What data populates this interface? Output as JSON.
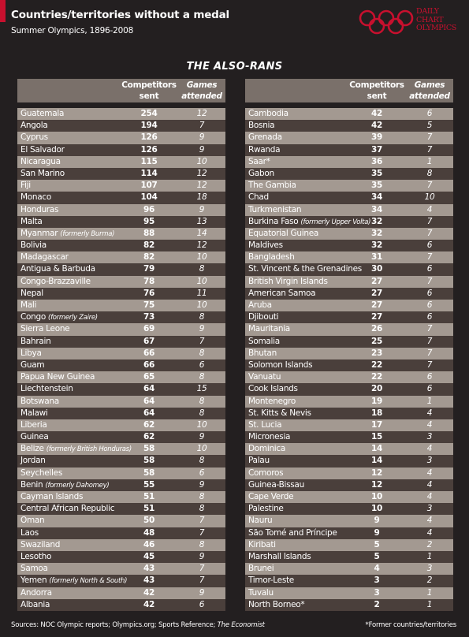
{
  "header": {
    "title": "Countries/territories without a medal",
    "subtitle": "Summer Olympics, 1896-2008",
    "brand_line1": "DAILY",
    "brand_line2": "CHART",
    "brand_line3": "OLYMPICS",
    "brand_color": "#c8102e"
  },
  "table_heading": "THE ALSO-RANS",
  "columns": {
    "competitors": [
      "Competitors",
      "sent"
    ],
    "games": [
      "Games",
      "attended"
    ]
  },
  "footer": {
    "sources_prefix": "Sources: NOC Olympic reports; Olympics.org; Sports Reference; ",
    "sources_italic": "The Economist",
    "footnote": "*Former countries/territories"
  },
  "colors": {
    "background": "#231f20",
    "row_light": "#a39991",
    "row_dark": "#4a3f3b",
    "header_band": "#7a706a"
  },
  "chart_data": {
    "type": "table",
    "title": "Countries/territories without a medal",
    "subtitle": "Summer Olympics, 1896-2008",
    "heading": "THE ALSO-RANS",
    "columns": [
      "Competitors sent",
      "Games attended"
    ],
    "left_table": [
      {
        "name": "Guatemala",
        "competitors": 254,
        "games": 12
      },
      {
        "name": "Angola",
        "competitors": 194,
        "games": 7
      },
      {
        "name": "Cyprus",
        "competitors": 126,
        "games": 9
      },
      {
        "name": "El Salvador",
        "competitors": 126,
        "games": 9
      },
      {
        "name": "Nicaragua",
        "competitors": 115,
        "games": 10
      },
      {
        "name": "San Marino",
        "competitors": 114,
        "games": 12
      },
      {
        "name": "Fiji",
        "competitors": 107,
        "games": 12
      },
      {
        "name": "Monaco",
        "competitors": 104,
        "games": 18
      },
      {
        "name": "Honduras",
        "competitors": 96,
        "games": 9
      },
      {
        "name": "Malta",
        "competitors": 95,
        "games": 13
      },
      {
        "name": "Myanmar",
        "note": "(formerly Burma)",
        "competitors": 88,
        "games": 14
      },
      {
        "name": "Bolivia",
        "competitors": 82,
        "games": 12
      },
      {
        "name": "Madagascar",
        "competitors": 82,
        "games": 10
      },
      {
        "name": "Antigua & Barbuda",
        "competitors": 79,
        "games": 8
      },
      {
        "name": "Congo-Brazzaville",
        "competitors": 78,
        "games": 10
      },
      {
        "name": "Nepal",
        "competitors": 76,
        "games": 11
      },
      {
        "name": "Mali",
        "competitors": 75,
        "games": 10
      },
      {
        "name": "Congo",
        "note": "(formerly Zaire)",
        "competitors": 73,
        "games": 8
      },
      {
        "name": "Sierra Leone",
        "competitors": 69,
        "games": 9
      },
      {
        "name": "Bahrain",
        "competitors": 67,
        "games": 7
      },
      {
        "name": "Libya",
        "competitors": 66,
        "games": 8
      },
      {
        "name": "Guam",
        "competitors": 66,
        "games": 6
      },
      {
        "name": "Papua New Guinea",
        "competitors": 65,
        "games": 8
      },
      {
        "name": "Liechtenstein",
        "competitors": 64,
        "games": 15
      },
      {
        "name": "Botswana",
        "competitors": 64,
        "games": 8
      },
      {
        "name": "Malawi",
        "competitors": 64,
        "games": 8
      },
      {
        "name": "Liberia",
        "competitors": 62,
        "games": 10
      },
      {
        "name": "Guinea",
        "competitors": 62,
        "games": 9
      },
      {
        "name": "Belize",
        "note": "(formerly British Honduras)",
        "competitors": 58,
        "games": 10
      },
      {
        "name": "Jordan",
        "competitors": 58,
        "games": 8
      },
      {
        "name": "Seychelles",
        "competitors": 58,
        "games": 6
      },
      {
        "name": "Benin",
        "note": "(formerly Dahomey)",
        "competitors": 55,
        "games": 9
      },
      {
        "name": "Cayman Islands",
        "competitors": 51,
        "games": 8
      },
      {
        "name": "Central African Republic",
        "competitors": 51,
        "games": 8
      },
      {
        "name": "Oman",
        "competitors": 50,
        "games": 7
      },
      {
        "name": "Laos",
        "competitors": 48,
        "games": 7
      },
      {
        "name": "Swaziland",
        "competitors": 46,
        "games": 8
      },
      {
        "name": "Lesotho",
        "competitors": 45,
        "games": 9
      },
      {
        "name": "Samoa",
        "competitors": 43,
        "games": 7
      },
      {
        "name": "Yemen",
        "note": "(formerly North & South)",
        "competitors": 43,
        "games": 7
      },
      {
        "name": "Andorra",
        "competitors": 42,
        "games": 9
      },
      {
        "name": "Albania",
        "competitors": 42,
        "games": 6
      }
    ],
    "right_table": [
      {
        "name": "Cambodia",
        "competitors": 42,
        "games": 6
      },
      {
        "name": "Bosnia",
        "competitors": 42,
        "games": 5
      },
      {
        "name": "Grenada",
        "competitors": 39,
        "games": 7
      },
      {
        "name": "Rwanda",
        "competitors": 37,
        "games": 7
      },
      {
        "name": "Saar*",
        "competitors": 36,
        "games": 1
      },
      {
        "name": "Gabon",
        "competitors": 35,
        "games": 8
      },
      {
        "name": "The Gambia",
        "competitors": 35,
        "games": 7
      },
      {
        "name": "Chad",
        "competitors": 34,
        "games": 10
      },
      {
        "name": "Turkmenistan",
        "competitors": 34,
        "games": 4
      },
      {
        "name": "Burkina Faso",
        "note": "(formerly Upper Volta)",
        "competitors": 32,
        "games": 7
      },
      {
        "name": "Equatorial Guinea",
        "competitors": 32,
        "games": 7
      },
      {
        "name": "Maldives",
        "competitors": 32,
        "games": 6
      },
      {
        "name": "Bangladesh",
        "competitors": 31,
        "games": 7
      },
      {
        "name": "St. Vincent & the Grenadines",
        "competitors": 30,
        "games": 6
      },
      {
        "name": "British Virgin Islands",
        "competitors": 27,
        "games": 7
      },
      {
        "name": "American Samoa",
        "competitors": 27,
        "games": 6
      },
      {
        "name": "Aruba",
        "competitors": 27,
        "games": 6
      },
      {
        "name": "Djibouti",
        "competitors": 27,
        "games": 6
      },
      {
        "name": "Mauritania",
        "competitors": 26,
        "games": 7
      },
      {
        "name": "Somalia",
        "competitors": 25,
        "games": 7
      },
      {
        "name": "Bhutan",
        "competitors": 23,
        "games": 7
      },
      {
        "name": "Solomon Islands",
        "competitors": 22,
        "games": 7
      },
      {
        "name": "Vanuatu",
        "competitors": 22,
        "games": 6
      },
      {
        "name": "Cook Islands",
        "competitors": 20,
        "games": 6
      },
      {
        "name": "Montenegro",
        "competitors": 19,
        "games": 1
      },
      {
        "name": "St. Kitts & Nevis",
        "competitors": 18,
        "games": 4
      },
      {
        "name": "St. Lucia",
        "competitors": 17,
        "games": 4
      },
      {
        "name": "Micronesia",
        "competitors": 15,
        "games": 3
      },
      {
        "name": "Dominica",
        "competitors": 14,
        "games": 4
      },
      {
        "name": "Palau",
        "competitors": 14,
        "games": 3
      },
      {
        "name": "Comoros",
        "competitors": 12,
        "games": 4
      },
      {
        "name": "Guinea-Bissau",
        "competitors": 12,
        "games": 4
      },
      {
        "name": "Cape Verde",
        "competitors": 10,
        "games": 4
      },
      {
        "name": "Palestine",
        "competitors": 10,
        "games": 3
      },
      {
        "name": "Nauru",
        "competitors": 9,
        "games": 4
      },
      {
        "name": "São Tomé and Príncipe",
        "competitors": 9,
        "games": 4
      },
      {
        "name": "Kiribati",
        "competitors": 5,
        "games": 2
      },
      {
        "name": "Marshall Islands",
        "competitors": 5,
        "games": 1
      },
      {
        "name": "Brunei",
        "competitors": 4,
        "games": 3
      },
      {
        "name": "Timor-Leste",
        "competitors": 3,
        "games": 2
      },
      {
        "name": "Tuvalu",
        "competitors": 3,
        "games": 1
      },
      {
        "name": "North Borneo*",
        "competitors": 2,
        "games": 1
      }
    ]
  }
}
